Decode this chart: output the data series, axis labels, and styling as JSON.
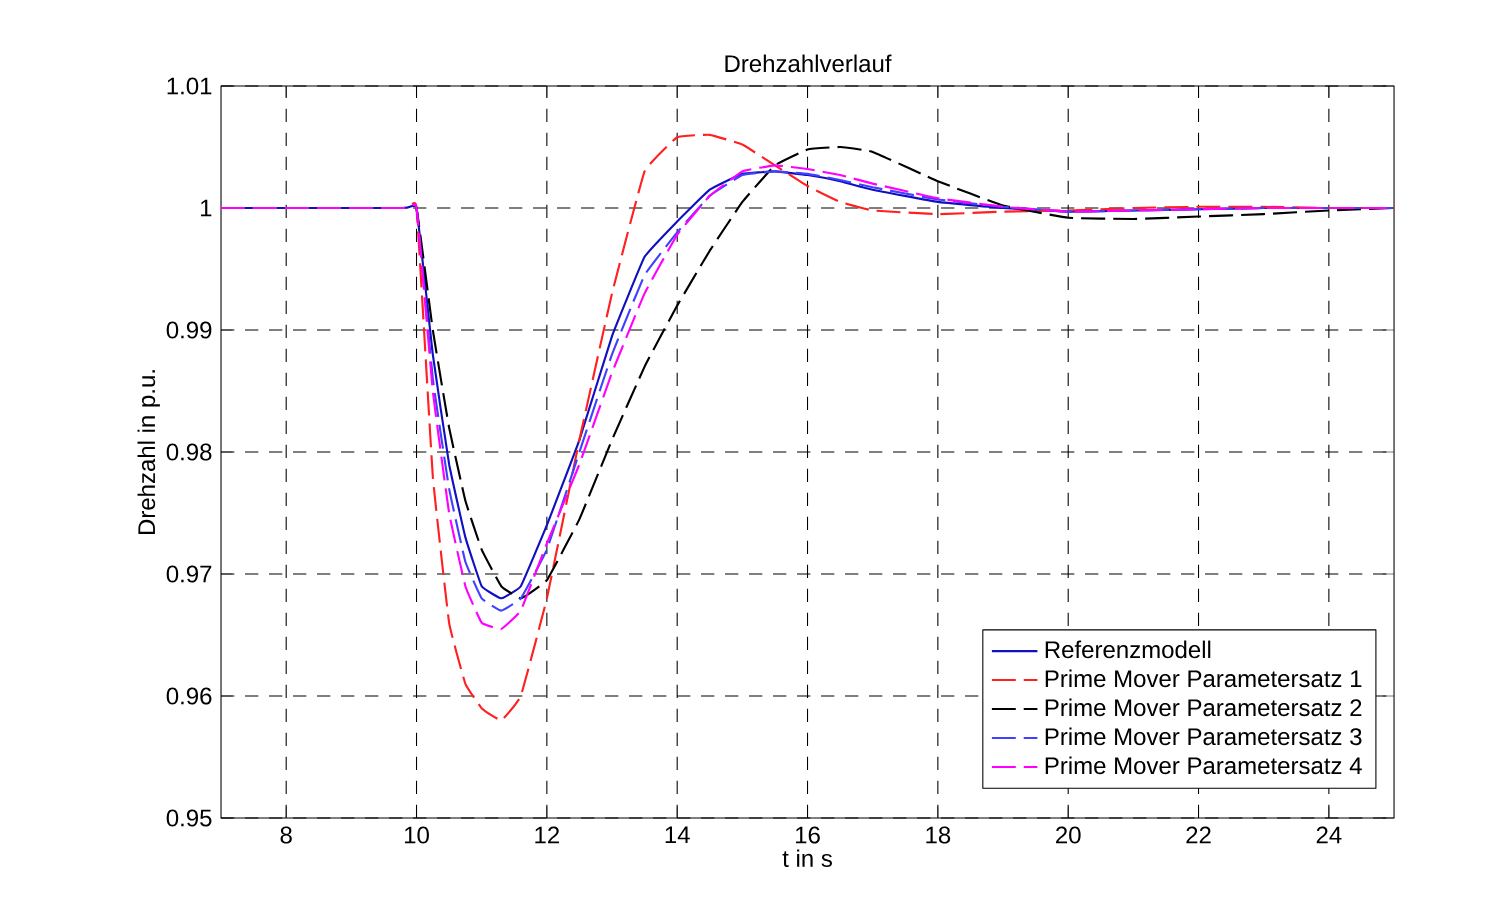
{
  "chart_data": {
    "type": "line",
    "title": "Drehzahlverlauf",
    "xlabel": "t in s",
    "ylabel": "Drehzahl in p.u.",
    "x": [
      7,
      9.8,
      10,
      10.25,
      10.5,
      10.75,
      11,
      11.3,
      11.6,
      12,
      12.5,
      13,
      13.5,
      14,
      14.5,
      15,
      15.5,
      16,
      16.5,
      17,
      18,
      19,
      20,
      21,
      22,
      23,
      24,
      25
    ],
    "series": [
      {
        "name": "Referenzmodell",
        "color": "#1010c0",
        "line_style": "solid",
        "values": [
          1,
          1,
          1,
          0.988,
          0.979,
          0.973,
          0.969,
          0.968,
          0.969,
          0.974,
          0.981,
          0.9895,
          0.996,
          0.9989,
          1.0015,
          1.0028,
          1.003,
          1.0027,
          1.0022,
          1.0015,
          1.0005,
          1.0,
          0.9997,
          0.9998,
          0.9999,
          1,
          1,
          1
        ]
      },
      {
        "name": "Prime Mover Parametersatz 1",
        "color": "#ff2020",
        "line_style": "dashed",
        "values": [
          1,
          1,
          1,
          0.978,
          0.966,
          0.961,
          0.959,
          0.958,
          0.96,
          0.968,
          0.981,
          0.993,
          1.003,
          1.0058,
          1.006,
          1.0052,
          1.0035,
          1.0018,
          1.0005,
          0.9998,
          0.9995,
          0.9997,
          0.9998,
          1,
          1.0001,
          1.0001,
          1,
          1
        ]
      },
      {
        "name": "Prime Mover Parametersatz 2",
        "color": "#000000",
        "line_style": "dashed",
        "values": [
          1,
          1,
          1,
          0.99,
          0.982,
          0.976,
          0.972,
          0.969,
          0.968,
          0.9695,
          0.9745,
          0.981,
          0.987,
          0.992,
          0.9965,
          1.0005,
          1.0035,
          1.0048,
          1.005,
          1.0046,
          1.0022,
          1.0002,
          0.9992,
          0.9991,
          0.9993,
          0.9995,
          0.9998,
          1
        ]
      },
      {
        "name": "Prime Mover Parametersatz 3",
        "color": "#4040ff",
        "line_style": "dashed",
        "values": [
          1,
          1,
          1,
          0.986,
          0.977,
          0.971,
          0.968,
          0.967,
          0.968,
          0.972,
          0.98,
          0.988,
          0.9945,
          0.998,
          1.001,
          1.0027,
          1.003,
          1.0028,
          1.0023,
          1.0017,
          1.0007,
          1.0001,
          0.9997,
          0.9998,
          0.9999,
          1,
          1,
          1
        ]
      },
      {
        "name": "Prime Mover Parametersatz 4",
        "color": "#ff00ff",
        "line_style": "dashed",
        "values": [
          1,
          1,
          1,
          0.985,
          0.975,
          0.969,
          0.966,
          0.9655,
          0.967,
          0.9725,
          0.979,
          0.9865,
          0.993,
          0.9978,
          1.001,
          1.003,
          1.0035,
          1.0032,
          1.0027,
          1.002,
          1.0008,
          1.0001,
          0.9997,
          0.9998,
          0.9999,
          1,
          1,
          1
        ]
      }
    ],
    "xlim": [
      7,
      25
    ],
    "xticks": [
      8,
      10,
      12,
      14,
      16,
      18,
      20,
      22,
      24
    ],
    "ylim": [
      0.95,
      1.01
    ],
    "yticks": [
      0.95,
      0.96,
      0.97,
      0.98,
      0.99,
      1,
      1.01
    ],
    "grid": true,
    "legend": "bottom right",
    "marker": "none"
  }
}
